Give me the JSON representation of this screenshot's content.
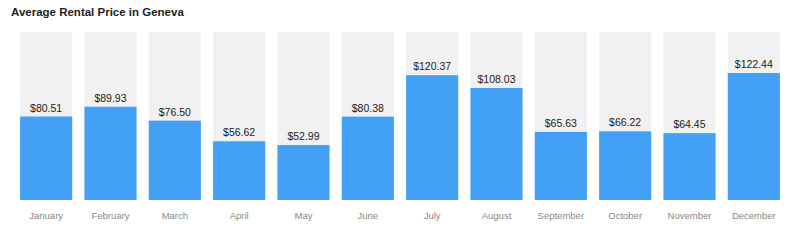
{
  "chart_data": {
    "type": "bar",
    "title": "Average Rental Price in Geneva",
    "categories": [
      "January",
      "February",
      "March",
      "April",
      "May",
      "June",
      "July",
      "August",
      "September",
      "October",
      "November",
      "December"
    ],
    "values": [
      80.51,
      89.93,
      76.5,
      56.62,
      52.99,
      80.38,
      120.37,
      108.03,
      65.63,
      66.22,
      64.45,
      122.44
    ],
    "value_labels": [
      "$80.51",
      "$89.93",
      "$76.50",
      "$56.62",
      "$52.99",
      "$80.38",
      "$120.37",
      "$108.03",
      "$65.63",
      "$66.22",
      "$64.45",
      "$122.44"
    ],
    "color": "#42a0f5",
    "ylim": [
      0,
      162
    ],
    "grid": false,
    "data_labels": true,
    "tick_labels": "x"
  }
}
